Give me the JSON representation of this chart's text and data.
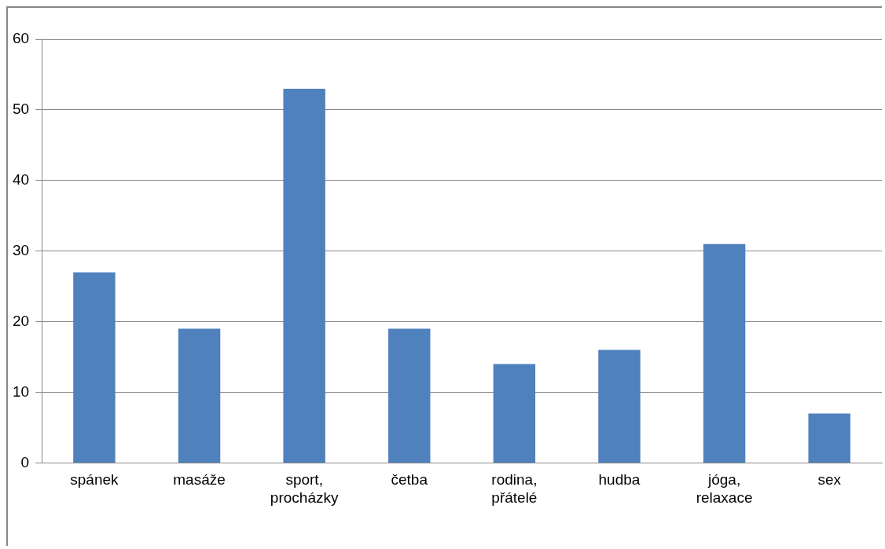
{
  "chart_data": {
    "type": "bar",
    "categories": [
      "spánek",
      "masáže",
      "sport, procházky",
      "četba",
      "rodina, přátelé",
      "hudba",
      "jóga, relaxace",
      "sex"
    ],
    "values": [
      27,
      19,
      53,
      19,
      14,
      16,
      31,
      7
    ],
    "color": "#4f81bd",
    "ylim": [
      0,
      60
    ],
    "yticks": [
      0,
      10,
      20,
      30,
      40,
      50,
      60
    ],
    "grid": "y"
  }
}
